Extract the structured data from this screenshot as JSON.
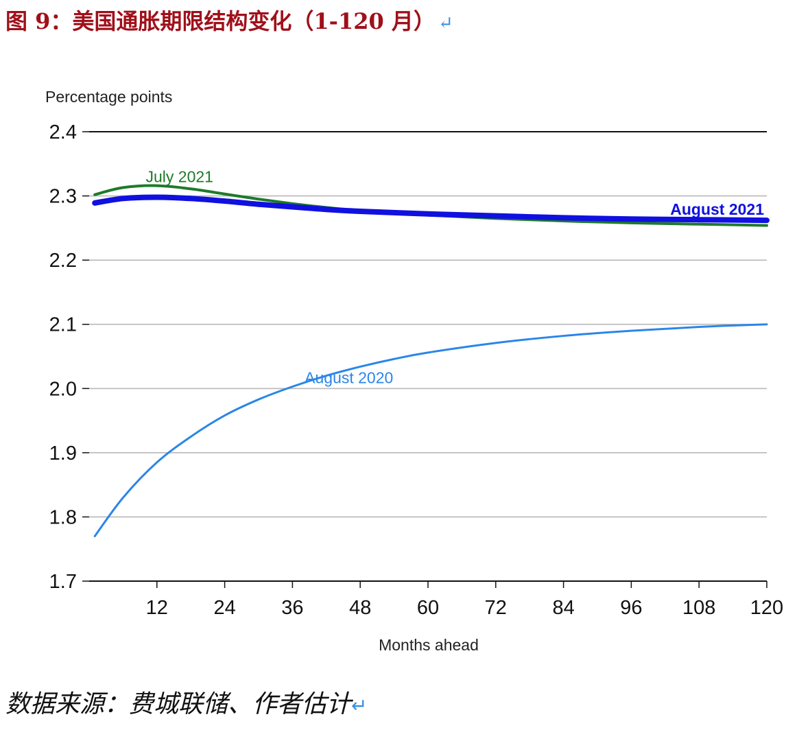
{
  "figure": {
    "title": "图 9：美国通胀期限结构变化（1-120 月）",
    "title_return_mark": "↵",
    "source": "数据来源：费城联储、作者估计",
    "source_return_mark": "↵"
  },
  "chart_data": {
    "type": "line",
    "ylabel": "Percentage points",
    "xlabel": "Months ahead",
    "xlim": [
      1,
      120
    ],
    "ylim": [
      1.7,
      2.4
    ],
    "x_ticks": [
      12,
      24,
      36,
      48,
      60,
      72,
      84,
      96,
      108,
      120
    ],
    "y_ticks": [
      1.7,
      1.8,
      1.9,
      2.0,
      2.1,
      2.2,
      2.3,
      2.4
    ],
    "grid": "horizontal",
    "series": [
      {
        "name": "August 2020",
        "color": "#2a86e8",
        "x": [
          1,
          6,
          12,
          18,
          24,
          30,
          36,
          42,
          48,
          54,
          60,
          72,
          84,
          96,
          108,
          120
        ],
        "y": [
          1.77,
          1.83,
          1.885,
          1.925,
          1.958,
          1.983,
          2.003,
          2.02,
          2.034,
          2.046,
          2.056,
          2.071,
          2.082,
          2.09,
          2.096,
          2.1
        ]
      },
      {
        "name": "July 2021",
        "color": "#1e7a2a",
        "x": [
          1,
          6,
          12,
          18,
          24,
          30,
          36,
          42,
          48,
          60,
          72,
          84,
          96,
          108,
          120
        ],
        "y": [
          2.302,
          2.313,
          2.316,
          2.311,
          2.303,
          2.295,
          2.288,
          2.282,
          2.277,
          2.27,
          2.265,
          2.261,
          2.258,
          2.256,
          2.254
        ]
      },
      {
        "name": "August 2021",
        "color": "#1010e0",
        "x": [
          1,
          6,
          12,
          18,
          24,
          30,
          36,
          42,
          48,
          60,
          72,
          84,
          96,
          108,
          120
        ],
        "y": [
          2.289,
          2.296,
          2.298,
          2.296,
          2.292,
          2.287,
          2.283,
          2.279,
          2.276,
          2.272,
          2.269,
          2.266,
          2.264,
          2.263,
          2.262
        ]
      }
    ]
  }
}
